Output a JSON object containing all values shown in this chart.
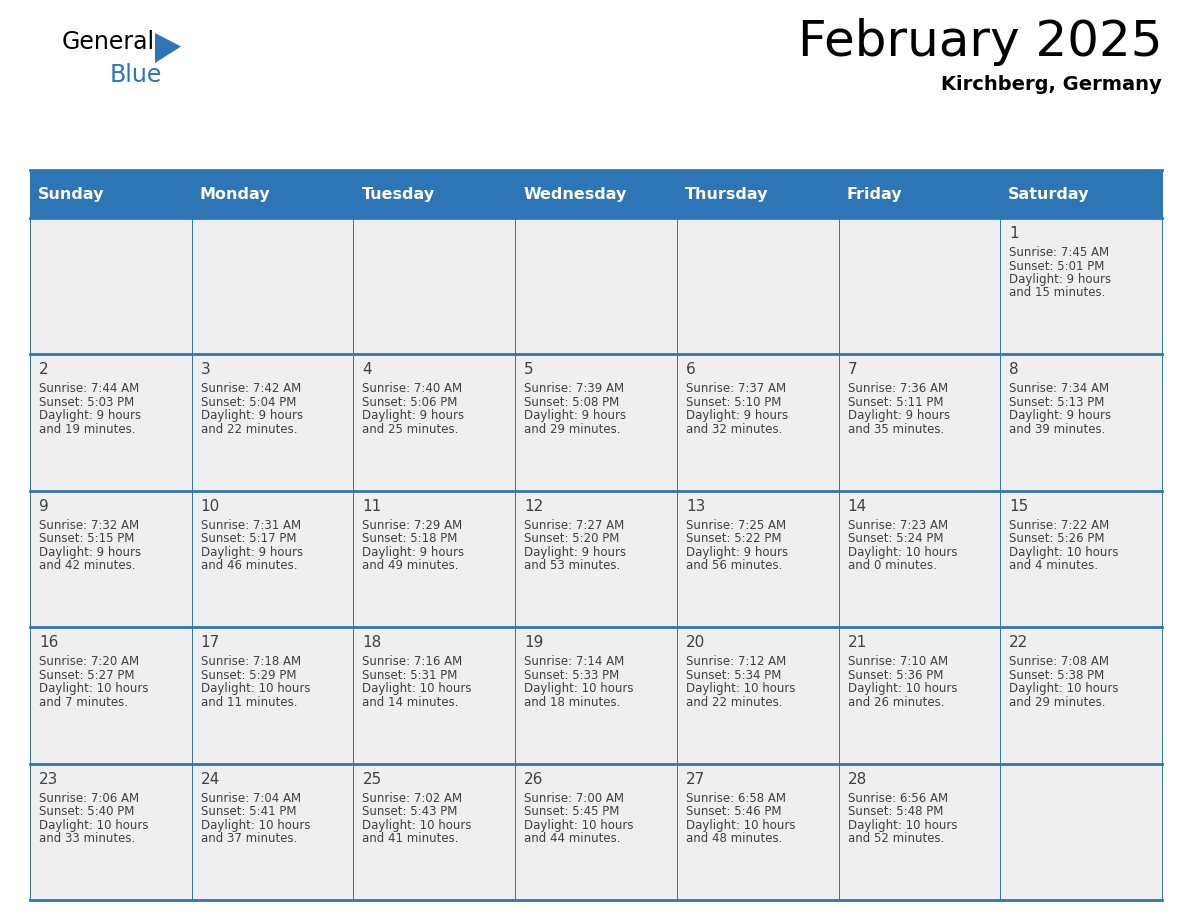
{
  "title": "February 2025",
  "subtitle": "Kirchberg, Germany",
  "header_bg": "#2e75b6",
  "header_text": "#ffffff",
  "cell_bg": "#efefef",
  "border_color": "#2e75b6",
  "day_names": [
    "Sunday",
    "Monday",
    "Tuesday",
    "Wednesday",
    "Thursday",
    "Friday",
    "Saturday"
  ],
  "days": [
    {
      "day": 1,
      "col": 6,
      "row": 0,
      "sunrise": "7:45 AM",
      "sunset": "5:01 PM",
      "dl1": "Daylight: 9 hours",
      "dl2": "and 15 minutes."
    },
    {
      "day": 2,
      "col": 0,
      "row": 1,
      "sunrise": "7:44 AM",
      "sunset": "5:03 PM",
      "dl1": "Daylight: 9 hours",
      "dl2": "and 19 minutes."
    },
    {
      "day": 3,
      "col": 1,
      "row": 1,
      "sunrise": "7:42 AM",
      "sunset": "5:04 PM",
      "dl1": "Daylight: 9 hours",
      "dl2": "and 22 minutes."
    },
    {
      "day": 4,
      "col": 2,
      "row": 1,
      "sunrise": "7:40 AM",
      "sunset": "5:06 PM",
      "dl1": "Daylight: 9 hours",
      "dl2": "and 25 minutes."
    },
    {
      "day": 5,
      "col": 3,
      "row": 1,
      "sunrise": "7:39 AM",
      "sunset": "5:08 PM",
      "dl1": "Daylight: 9 hours",
      "dl2": "and 29 minutes."
    },
    {
      "day": 6,
      "col": 4,
      "row": 1,
      "sunrise": "7:37 AM",
      "sunset": "5:10 PM",
      "dl1": "Daylight: 9 hours",
      "dl2": "and 32 minutes."
    },
    {
      "day": 7,
      "col": 5,
      "row": 1,
      "sunrise": "7:36 AM",
      "sunset": "5:11 PM",
      "dl1": "Daylight: 9 hours",
      "dl2": "and 35 minutes."
    },
    {
      "day": 8,
      "col": 6,
      "row": 1,
      "sunrise": "7:34 AM",
      "sunset": "5:13 PM",
      "dl1": "Daylight: 9 hours",
      "dl2": "and 39 minutes."
    },
    {
      "day": 9,
      "col": 0,
      "row": 2,
      "sunrise": "7:32 AM",
      "sunset": "5:15 PM",
      "dl1": "Daylight: 9 hours",
      "dl2": "and 42 minutes."
    },
    {
      "day": 10,
      "col": 1,
      "row": 2,
      "sunrise": "7:31 AM",
      "sunset": "5:17 PM",
      "dl1": "Daylight: 9 hours",
      "dl2": "and 46 minutes."
    },
    {
      "day": 11,
      "col": 2,
      "row": 2,
      "sunrise": "7:29 AM",
      "sunset": "5:18 PM",
      "dl1": "Daylight: 9 hours",
      "dl2": "and 49 minutes."
    },
    {
      "day": 12,
      "col": 3,
      "row": 2,
      "sunrise": "7:27 AM",
      "sunset": "5:20 PM",
      "dl1": "Daylight: 9 hours",
      "dl2": "and 53 minutes."
    },
    {
      "day": 13,
      "col": 4,
      "row": 2,
      "sunrise": "7:25 AM",
      "sunset": "5:22 PM",
      "dl1": "Daylight: 9 hours",
      "dl2": "and 56 minutes."
    },
    {
      "day": 14,
      "col": 5,
      "row": 2,
      "sunrise": "7:23 AM",
      "sunset": "5:24 PM",
      "dl1": "Daylight: 10 hours",
      "dl2": "and 0 minutes."
    },
    {
      "day": 15,
      "col": 6,
      "row": 2,
      "sunrise": "7:22 AM",
      "sunset": "5:26 PM",
      "dl1": "Daylight: 10 hours",
      "dl2": "and 4 minutes."
    },
    {
      "day": 16,
      "col": 0,
      "row": 3,
      "sunrise": "7:20 AM",
      "sunset": "5:27 PM",
      "dl1": "Daylight: 10 hours",
      "dl2": "and 7 minutes."
    },
    {
      "day": 17,
      "col": 1,
      "row": 3,
      "sunrise": "7:18 AM",
      "sunset": "5:29 PM",
      "dl1": "Daylight: 10 hours",
      "dl2": "and 11 minutes."
    },
    {
      "day": 18,
      "col": 2,
      "row": 3,
      "sunrise": "7:16 AM",
      "sunset": "5:31 PM",
      "dl1": "Daylight: 10 hours",
      "dl2": "and 14 minutes."
    },
    {
      "day": 19,
      "col": 3,
      "row": 3,
      "sunrise": "7:14 AM",
      "sunset": "5:33 PM",
      "dl1": "Daylight: 10 hours",
      "dl2": "and 18 minutes."
    },
    {
      "day": 20,
      "col": 4,
      "row": 3,
      "sunrise": "7:12 AM",
      "sunset": "5:34 PM",
      "dl1": "Daylight: 10 hours",
      "dl2": "and 22 minutes."
    },
    {
      "day": 21,
      "col": 5,
      "row": 3,
      "sunrise": "7:10 AM",
      "sunset": "5:36 PM",
      "dl1": "Daylight: 10 hours",
      "dl2": "and 26 minutes."
    },
    {
      "day": 22,
      "col": 6,
      "row": 3,
      "sunrise": "7:08 AM",
      "sunset": "5:38 PM",
      "dl1": "Daylight: 10 hours",
      "dl2": "and 29 minutes."
    },
    {
      "day": 23,
      "col": 0,
      "row": 4,
      "sunrise": "7:06 AM",
      "sunset": "5:40 PM",
      "dl1": "Daylight: 10 hours",
      "dl2": "and 33 minutes."
    },
    {
      "day": 24,
      "col": 1,
      "row": 4,
      "sunrise": "7:04 AM",
      "sunset": "5:41 PM",
      "dl1": "Daylight: 10 hours",
      "dl2": "and 37 minutes."
    },
    {
      "day": 25,
      "col": 2,
      "row": 4,
      "sunrise": "7:02 AM",
      "sunset": "5:43 PM",
      "dl1": "Daylight: 10 hours",
      "dl2": "and 41 minutes."
    },
    {
      "day": 26,
      "col": 3,
      "row": 4,
      "sunrise": "7:00 AM",
      "sunset": "5:45 PM",
      "dl1": "Daylight: 10 hours",
      "dl2": "and 44 minutes."
    },
    {
      "day": 27,
      "col": 4,
      "row": 4,
      "sunrise": "6:58 AM",
      "sunset": "5:46 PM",
      "dl1": "Daylight: 10 hours",
      "dl2": "and 48 minutes."
    },
    {
      "day": 28,
      "col": 5,
      "row": 4,
      "sunrise": "6:56 AM",
      "sunset": "5:48 PM",
      "dl1": "Daylight: 10 hours",
      "dl2": "and 52 minutes."
    }
  ],
  "num_rows": 5,
  "num_cols": 7,
  "logo_triangle_color": "#2e75b6",
  "text_color": "#404040",
  "title_fontsize": 36,
  "subtitle_fontsize": 14,
  "dayname_fontsize": 11.5,
  "daynum_fontsize": 11,
  "info_fontsize": 8.5
}
